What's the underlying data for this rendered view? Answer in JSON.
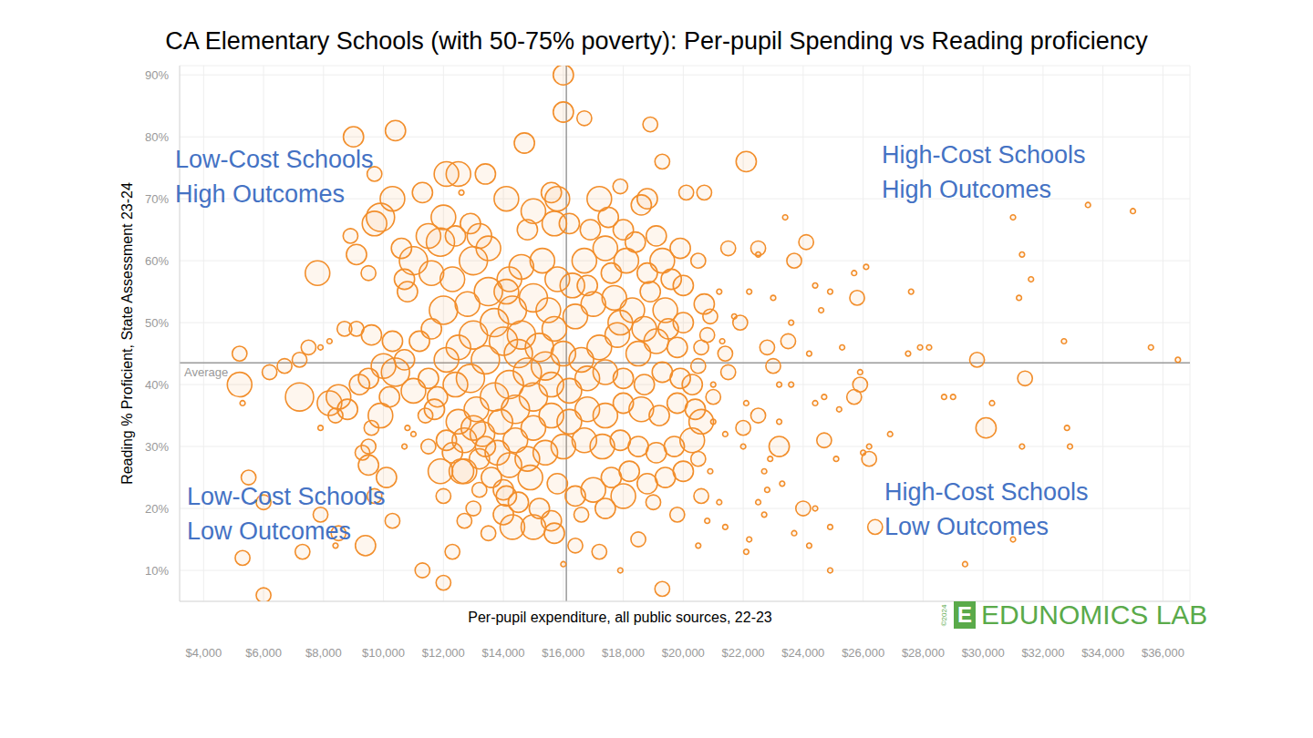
{
  "chart_data": {
    "type": "scatter",
    "title": "CA Elementary Schools (with 50-75% poverty): Per-pupil Spending vs Reading proficiency",
    "x_label": "Per-pupil expenditure, all public sources, 22-23",
    "y_label": "Reading % Proficient, State Assessment 23-24",
    "annotations": [
      "Low-Cost Schools\nHigh Outcomes",
      "High-Cost Schools\nHigh Outcomes",
      "Low-Cost Schools\nLow Outcomes",
      "High-Cost Schools\nLow Outcomes"
    ],
    "logo_mark": "E",
    "logo": "EDUNOMICS LAB",
    "copyright": "©2024",
    "average": {
      "x": 16100,
      "y": 43.5,
      "label": "Average"
    },
    "color": "#f28e2b",
    "marker": "circle",
    "grid": true,
    "xlim": [
      3200,
      36900
    ],
    "ylim": [
      5,
      91.5
    ],
    "xticks": [
      {
        "value": 4000,
        "label": "$4,000"
      },
      {
        "value": 6000,
        "label": "$6,000"
      },
      {
        "value": 8000,
        "label": "$8,000"
      },
      {
        "value": 10000,
        "label": "$10,000"
      },
      {
        "value": 12000,
        "label": "$12,000"
      },
      {
        "value": 14000,
        "label": "$14,000"
      },
      {
        "value": 16000,
        "label": "$16,000"
      },
      {
        "value": 18000,
        "label": "$18,000"
      },
      {
        "value": 20000,
        "label": "$20,000"
      },
      {
        "value": 22000,
        "label": "$22,000"
      },
      {
        "value": 24000,
        "label": "$24,000"
      },
      {
        "value": 26000,
        "label": "$26,000"
      },
      {
        "value": 28000,
        "label": "$28,000"
      },
      {
        "value": 30000,
        "label": "$30,000"
      },
      {
        "value": 32000,
        "label": "$32,000"
      },
      {
        "value": 34000,
        "label": "$34,000"
      },
      {
        "value": 36000,
        "label": "$36,000"
      }
    ],
    "yticks": [
      {
        "value": 10,
        "label": "10%"
      },
      {
        "value": 20,
        "label": "20%"
      },
      {
        "value": 30,
        "label": "30%"
      },
      {
        "value": 40,
        "label": "40%"
      },
      {
        "value": 50,
        "label": "50%"
      },
      {
        "value": 60,
        "label": "60%"
      },
      {
        "value": 70,
        "label": "70%"
      },
      {
        "value": 80,
        "label": "80%"
      },
      {
        "value": 90,
        "label": "90%"
      }
    ],
    "x": [
      16000,
      16000,
      16700,
      18900,
      10400,
      9000,
      14700,
      22100,
      19300,
      12500,
      12100,
      13400,
      9700,
      10300,
      9900,
      9700,
      11300,
      12600,
      17200,
      15800,
      18600,
      20100,
      20700,
      17900,
      18800,
      23400,
      31000,
      33500,
      35000,
      31300,
      31600,
      31200,
      22500,
      24100,
      21500,
      23700,
      26100,
      25700,
      27600,
      24400,
      24900,
      25800,
      23600,
      24600,
      21900,
      22200,
      22500,
      23000,
      19900,
      20500,
      20000,
      20700,
      19600,
      21200,
      21700,
      20800,
      21400,
      22800,
      23000,
      23500,
      24200,
      25300,
      27500,
      27900,
      28200,
      29800,
      32700,
      35600,
      36500,
      25900,
      25900,
      25700,
      24700,
      24400,
      25200,
      23200,
      23600,
      22100,
      22500,
      22000,
      21000,
      21000,
      22000,
      23200,
      24700,
      23200,
      25100,
      26200,
      26200,
      26000,
      26900,
      28700,
      29000,
      30100,
      30300,
      31400,
      31300,
      32800,
      32900,
      26400,
      24900,
      24200,
      24400,
      24000,
      23700,
      24900,
      22500,
      22700,
      22100,
      22200,
      21400,
      20500,
      22800,
      23300,
      22700,
      22900,
      29400,
      31000,
      19300,
      17900,
      16000,
      16400,
      17200,
      13500,
      12700,
      12300,
      12000,
      11300,
      14300,
      15000,
      15700,
      15200,
      14500,
      14000,
      13200,
      13000,
      12000,
      11900,
      12300,
      12600,
      11700,
      11400,
      11000,
      10400,
      10200,
      9900,
      9600,
      9500,
      9300,
      9500,
      10100,
      9400,
      9700,
      10300,
      8500,
      8400,
      7900,
      7300,
      6000,
      5300,
      5500,
      6000,
      5200,
      5200,
      5300,
      6200,
      6700,
      7200,
      7500,
      7900,
      8200,
      8700,
      9100,
      9600,
      10300,
      8200,
      7200,
      7900,
      8400,
      8500,
      8800,
      9200,
      9500,
      10000,
      10700,
      7800,
      8900,
      9100,
      9500,
      10600,
      11000,
      10800,
      10700,
      11600,
      11900,
      11500,
      12000,
      12400,
      12900,
      13200,
      13000,
      13500,
      12300,
      12000,
      12800,
      13500,
      14200,
      14600,
      15300,
      15700,
      14800,
      14100,
      15000,
      15600,
      16200,
      16900,
      17500,
      17400,
      18000,
      18400,
      19100,
      19300,
      18800,
      18100,
      17600,
      16700,
      16300,
      15800,
      15000,
      14300,
      13700,
      13000,
      12500,
      12100,
      11600,
      11200,
      12400,
      11800,
      11500,
      12900,
      13400,
      14000,
      14600,
      15200,
      15700,
      16400,
      17000,
      17700,
      18300,
      18900,
      19400,
      20000,
      19800,
      19100,
      18500,
      17800,
      17200,
      16600,
      16000,
      15400,
      14800,
      14200,
      13700,
      13100,
      12500,
      12100,
      12700,
      13300,
      13900,
      14400,
      15000,
      15600,
      16200,
      16800,
      17400,
      18000,
      18700,
      19300,
      19900,
      20300,
      20500,
      20400,
      19800,
      19200,
      18600,
      18000,
      17400,
      16800,
      16200,
      15600,
      15000,
      14400,
      13800,
      13200,
      12700,
      13600,
      14200,
      14800,
      15400,
      16000,
      16700,
      17300,
      17900,
      18500,
      19100,
      19700,
      20300,
      20600,
      20500,
      20000,
      19400,
      18800,
      18200,
      17600,
      17000,
      16400,
      15800,
      14900,
      14100,
      19000,
      18000,
      17400,
      19800,
      20600,
      18500,
      14000,
      15600,
      16600,
      13400,
      13000,
      14500,
      15500,
      14100,
      16800,
      17900,
      18700,
      19500,
      20600,
      20900,
      21500,
      21300,
      21000,
      21400,
      20900,
      21200,
      20800,
      11500,
      11000,
      10700,
      10800
    ],
    "values": [
      90,
      84,
      83,
      82,
      81,
      80,
      79,
      76,
      76,
      74,
      74,
      74,
      74,
      70,
      67,
      66,
      71,
      71,
      70,
      70,
      69,
      71,
      71,
      72,
      70,
      67,
      67,
      69,
      68,
      61,
      57,
      54,
      62,
      63,
      62,
      60,
      59,
      58,
      55,
      56,
      55,
      54,
      50,
      52,
      50,
      55,
      61,
      54,
      62,
      60,
      56,
      53,
      57,
      55,
      51,
      48,
      45,
      46,
      43,
      47,
      45,
      46,
      45,
      46,
      46,
      44,
      47,
      46,
      44,
      42,
      40,
      38,
      38,
      37,
      36,
      40,
      40,
      37,
      35,
      33,
      40,
      34,
      30,
      30,
      31,
      34,
      28,
      30,
      28,
      29,
      32,
      38,
      38,
      33,
      37,
      41,
      30,
      33,
      30,
      17,
      10,
      14,
      20,
      20,
      16,
      17,
      21,
      19,
      13,
      15,
      17,
      14,
      23,
      24,
      26,
      28,
      11,
      15,
      7,
      10,
      11,
      14,
      13,
      16,
      18,
      13,
      8,
      10,
      17,
      17,
      16,
      20,
      21,
      23,
      23,
      20,
      22,
      26,
      29,
      26,
      36,
      35,
      39,
      42,
      38,
      35,
      33,
      30,
      29,
      27,
      25,
      14,
      22,
      18,
      16,
      14,
      19,
      13,
      6,
      12,
      25,
      21,
      40,
      45,
      37,
      42,
      43,
      44,
      46,
      46,
      47,
      49,
      49,
      48,
      47,
      37,
      38,
      33,
      35,
      38,
      36,
      40,
      41,
      43,
      44,
      58,
      64,
      61,
      58,
      62,
      60,
      55,
      57,
      58,
      63,
      64,
      67,
      64,
      66,
      64,
      60,
      62,
      57,
      52,
      53,
      55,
      57,
      59,
      60,
      66,
      65,
      70,
      68,
      71,
      66,
      65,
      67,
      62,
      65,
      63,
      64,
      60,
      58,
      60,
      58,
      60,
      56,
      57,
      54,
      52,
      50,
      48,
      46,
      44,
      49,
      47,
      40,
      38,
      41,
      41,
      44,
      47,
      48,
      46,
      49,
      51,
      53,
      54,
      52,
      55,
      52,
      50,
      46,
      47,
      45,
      48,
      46,
      44,
      45,
      43,
      42,
      40,
      38,
      36,
      34,
      31,
      31,
      32,
      34,
      36,
      38,
      40,
      39,
      41,
      42,
      41,
      40,
      42,
      41,
      40,
      43,
      36,
      37,
      35,
      36,
      37,
      35,
      36,
      34,
      35,
      33,
      31,
      29,
      28,
      26,
      25,
      27,
      28,
      29,
      30,
      31,
      30,
      31,
      30,
      29,
      30,
      31,
      34,
      28,
      26,
      25,
      24,
      26,
      25,
      23,
      22,
      24,
      25,
      22,
      21,
      22,
      20,
      19,
      22,
      15,
      19,
      18,
      19,
      30,
      33,
      45,
      52,
      55,
      56,
      50,
      49,
      49,
      46,
      51,
      42,
      47,
      38,
      32,
      26,
      21,
      18,
      30,
      32,
      30,
      33
    ],
    "sizes": [
      3,
      3,
      2,
      2,
      3,
      3,
      3,
      3,
      2,
      4,
      4,
      3,
      2,
      4,
      5,
      4,
      3,
      1,
      4,
      4,
      3,
      2,
      2,
      2,
      3,
      1,
      1,
      1,
      1,
      1,
      1,
      1,
      2,
      2,
      2,
      2,
      1,
      1,
      1,
      1,
      1,
      2,
      1,
      1,
      2,
      1,
      1,
      1,
      3,
      2,
      3,
      3,
      3,
      1,
      1,
      2,
      2,
      2,
      2,
      2,
      1,
      1,
      1,
      1,
      1,
      2,
      1,
      1,
      1,
      1,
      2,
      2,
      1,
      1,
      1,
      1,
      1,
      1,
      2,
      2,
      1,
      1,
      1,
      3,
      2,
      1,
      1,
      1,
      2,
      1,
      1,
      1,
      1,
      3,
      1,
      2,
      1,
      1,
      1,
      2,
      1,
      1,
      1,
      2,
      1,
      1,
      1,
      1,
      1,
      1,
      1,
      1,
      1,
      1,
      1,
      1,
      1,
      1,
      2,
      1,
      1,
      2,
      2,
      2,
      2,
      2,
      2,
      2,
      4,
      4,
      3,
      3,
      3,
      3,
      2,
      2,
      2,
      4,
      3,
      4,
      3,
      2,
      4,
      5,
      3,
      4,
      2,
      2,
      2,
      3,
      3,
      3,
      2,
      2,
      2,
      1,
      2,
      2,
      2,
      2,
      2,
      2,
      4,
      2,
      1,
      2,
      2,
      2,
      2,
      1,
      1,
      2,
      2,
      3,
      3,
      4,
      5,
      1,
      2,
      4,
      3,
      3,
      3,
      4,
      3,
      4,
      2,
      3,
      2,
      3,
      5,
      3,
      3,
      4,
      5,
      4,
      4,
      3,
      3,
      4,
      5,
      4,
      4,
      5,
      4,
      5,
      4,
      4,
      4,
      4,
      3,
      4,
      4,
      3,
      3,
      3,
      3,
      4,
      3,
      3,
      3,
      4,
      3,
      4,
      3,
      4,
      4,
      4,
      5,
      5,
      5,
      5,
      4,
      4,
      3,
      3,
      4,
      3,
      3,
      5,
      5,
      5,
      5,
      5,
      4,
      4,
      4,
      4,
      4,
      3,
      4,
      3,
      3,
      4,
      4,
      4,
      4,
      4,
      4,
      5,
      5,
      5,
      5,
      4,
      4,
      3,
      4,
      4,
      4,
      5,
      5,
      4,
      4,
      4,
      4,
      3,
      3,
      3,
      3,
      3,
      2,
      3,
      3,
      3,
      4,
      3,
      4,
      4,
      4,
      4,
      4,
      4,
      4,
      3,
      4,
      3,
      4,
      4,
      4,
      4,
      4,
      4,
      3,
      3,
      3,
      3,
      4,
      4,
      2,
      3,
      3,
      3,
      3,
      3,
      4,
      3,
      3,
      4,
      3,
      2,
      4,
      3,
      2,
      2,
      2,
      3,
      3,
      2,
      3,
      4,
      5,
      4,
      4,
      3,
      4,
      4,
      3,
      2,
      2,
      2,
      1,
      2,
      1,
      1,
      1,
      1,
      2,
      1,
      1,
      1
    ]
  }
}
